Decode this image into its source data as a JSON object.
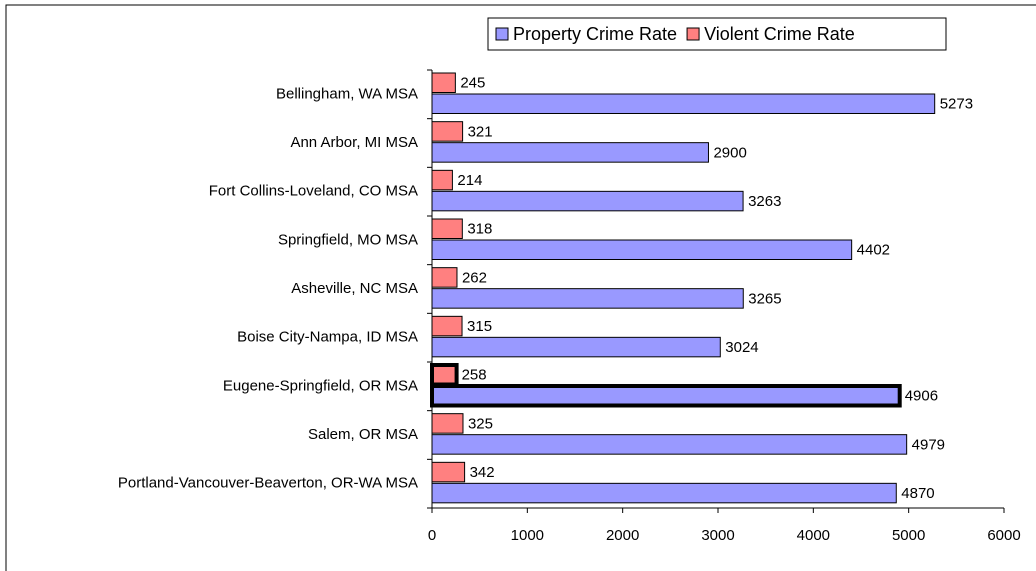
{
  "chart_data": {
    "type": "bar",
    "orientation": "horizontal",
    "categories": [
      "Bellingham, WA MSA",
      "Ann Arbor, MI MSA",
      "Fort Collins-Loveland, CO MSA",
      "Springfield, MO MSA",
      "Asheville, NC MSA",
      "Boise City-Nampa, ID MSA",
      "Eugene-Springfield, OR MSA",
      "Salem, OR MSA",
      "Portland-Vancouver-Beaverton, OR-WA MSA"
    ],
    "series": [
      {
        "name": "Property Crime Rate",
        "color": "#9999ff",
        "values": [
          5273,
          2900,
          3263,
          4402,
          3265,
          3024,
          4906,
          4979,
          4870
        ]
      },
      {
        "name": "Violent Crime Rate",
        "color": "#ff8080",
        "values": [
          245,
          321,
          214,
          318,
          262,
          315,
          258,
          325,
          342
        ]
      }
    ],
    "xlim": [
      0,
      6000
    ],
    "xticks": [
      0,
      1000,
      2000,
      3000,
      4000,
      5000,
      6000
    ],
    "highlight_index": 6,
    "legend": "top"
  }
}
